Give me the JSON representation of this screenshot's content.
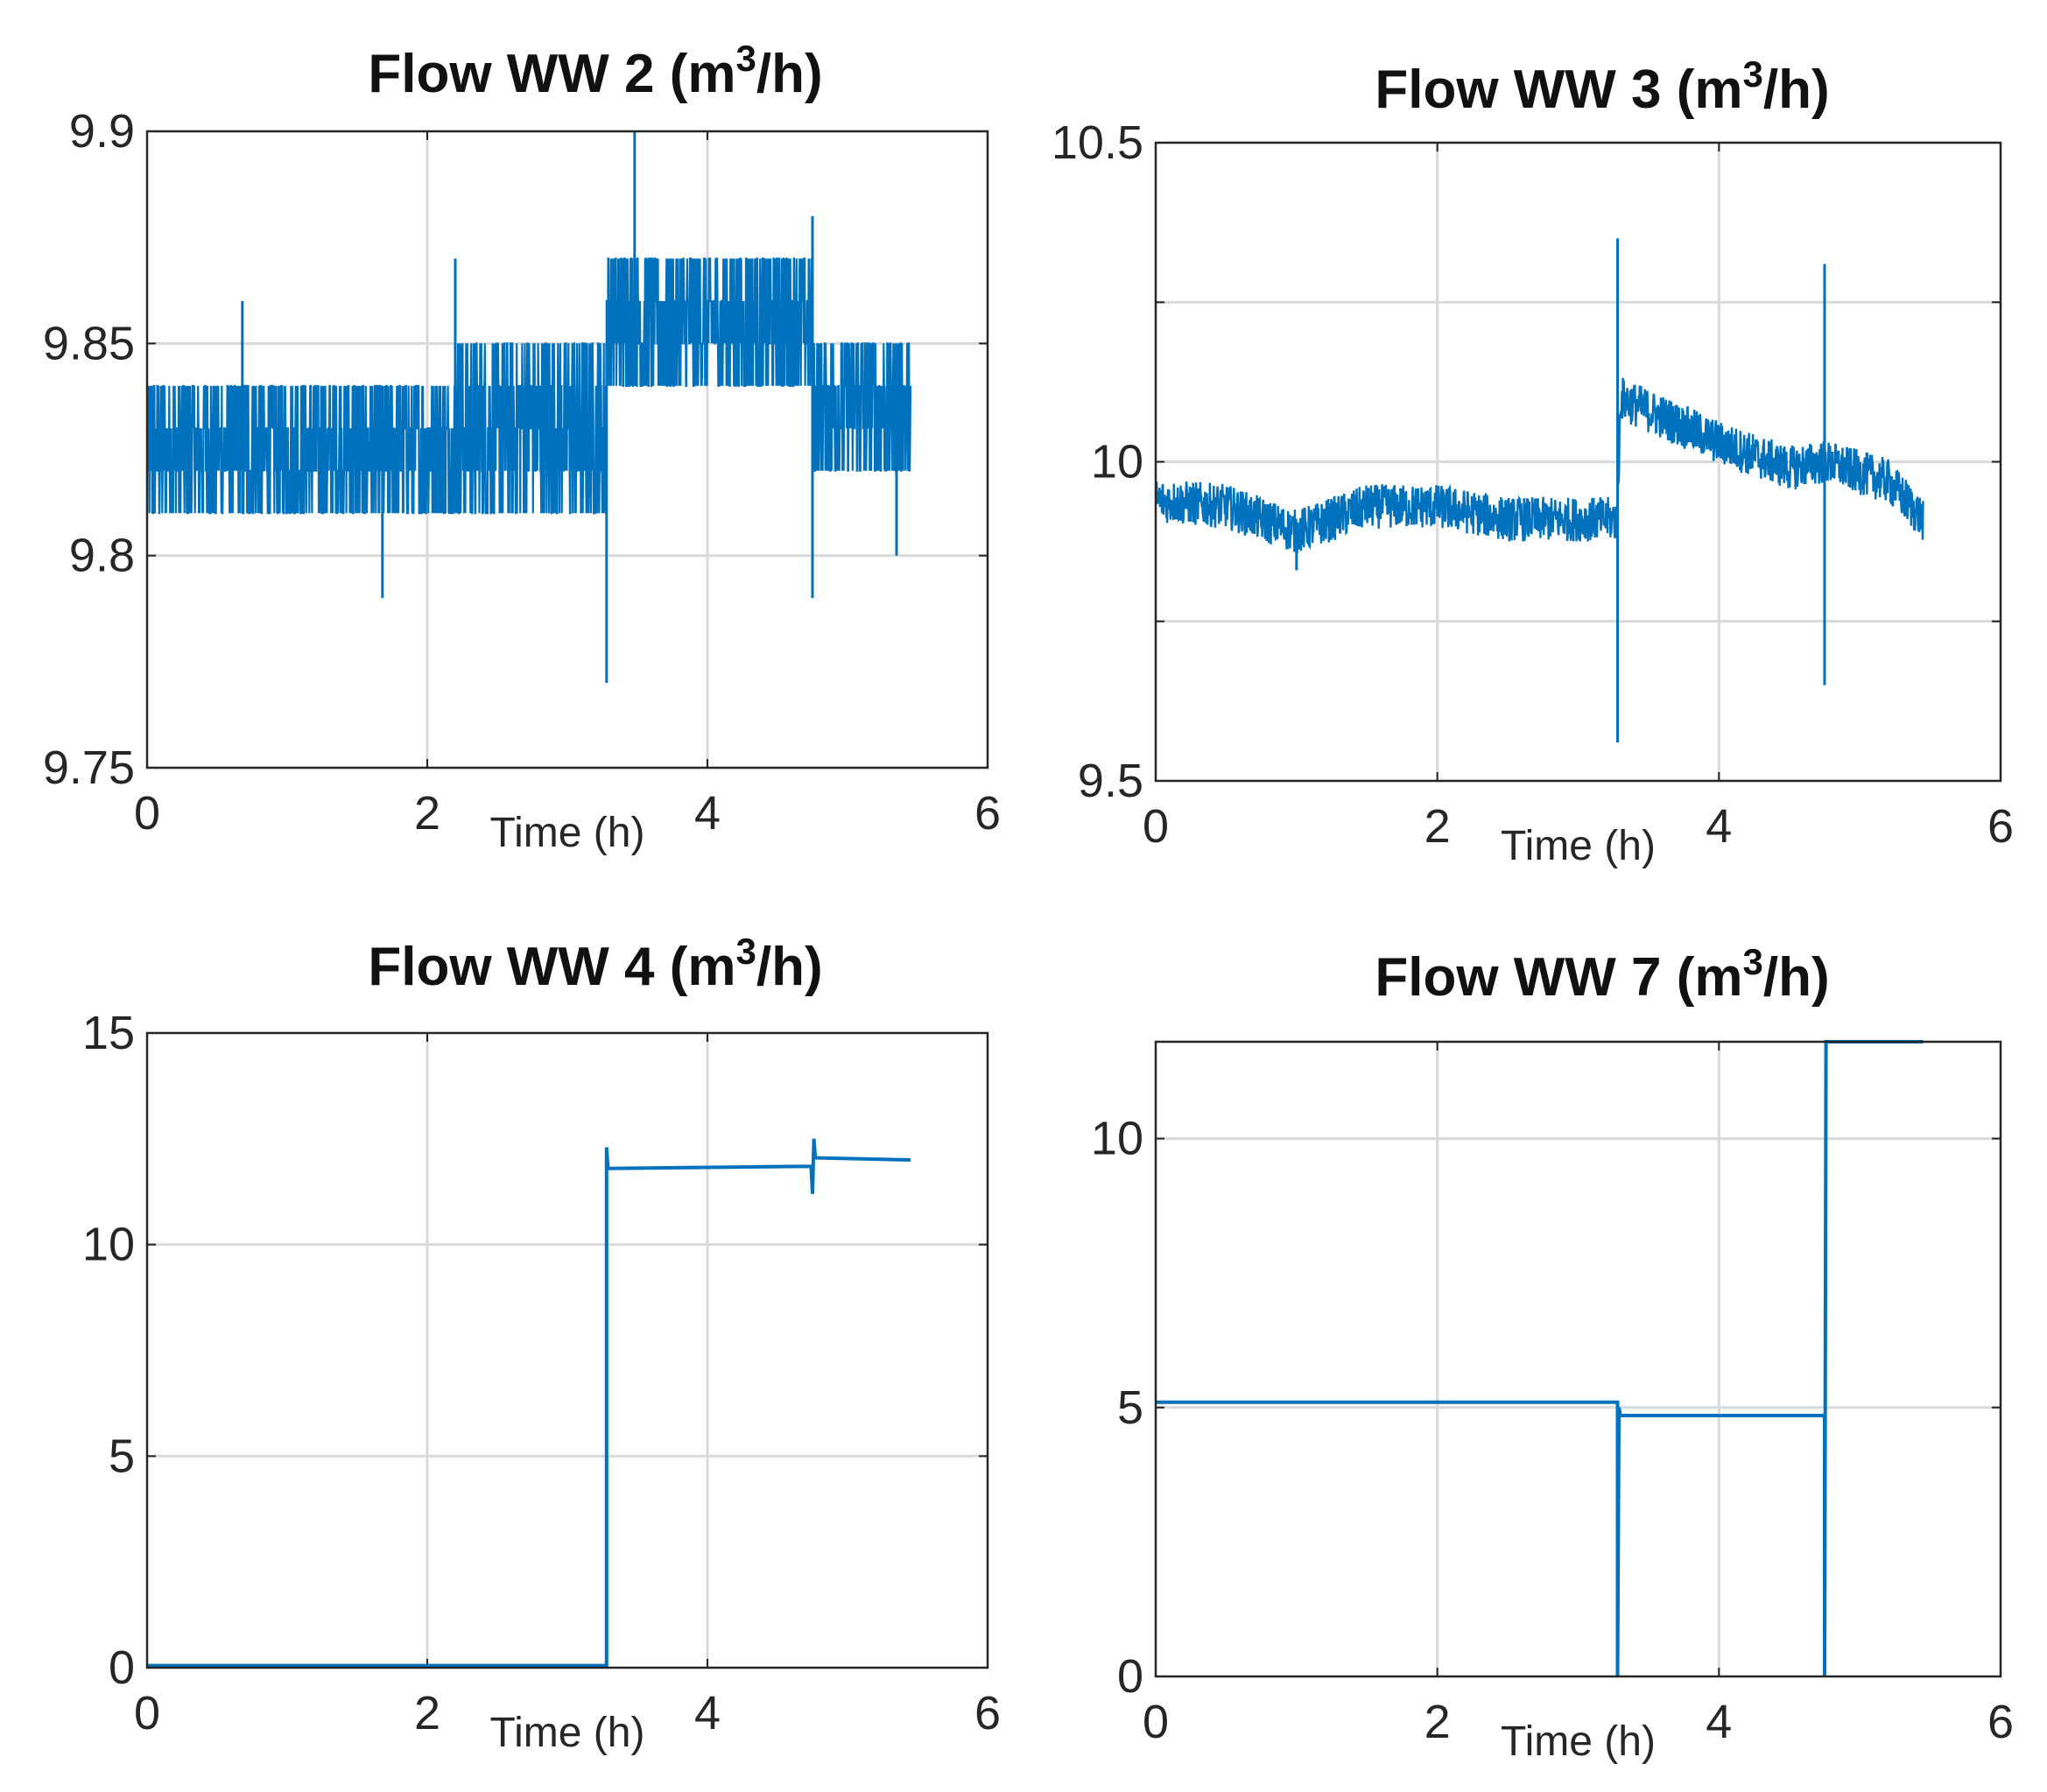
{
  "colors": {
    "line": "#0072bd",
    "grid": "#d9d9d9",
    "axis": "#262626",
    "text": "#111111"
  },
  "chart_data": [
    {
      "type": "line",
      "title": "Flow  WW 2 (m3/h)",
      "title_parts": {
        "pre": "Flow  WW 2 (m",
        "sup": "3",
        "post": "/h)"
      },
      "xlabel": "Time  (h)",
      "ylabel": "",
      "xlim": [
        0,
        6
      ],
      "ylim": [
        9.75,
        9.9
      ],
      "xticks": [
        "0",
        "2",
        "4",
        "6"
      ],
      "yticks": [
        "9.75",
        "9.8",
        "9.85",
        "9.9"
      ],
      "grid": true,
      "series": [
        {
          "name": "Flow WW 2",
          "noise": "quantized",
          "segments": [
            {
              "x0": 0,
              "x1": 2.2,
              "lo": 9.81,
              "hi": 9.84
            },
            {
              "x0": 2.2,
              "x1": 3.28,
              "lo": 9.81,
              "hi": 9.85
            },
            {
              "x0": 3.28,
              "x1": 4.75,
              "lo": 9.84,
              "hi": 9.87
            },
            {
              "x0": 4.75,
              "x1": 5.45,
              "lo": 9.82,
              "hi": 9.85
            }
          ],
          "spikes": [
            {
              "x": 3.28,
              "lo": 9.77,
              "hi": 9.85
            },
            {
              "x": 3.48,
              "lo": 9.84,
              "hi": 9.9
            },
            {
              "x": 4.75,
              "lo": 9.79,
              "hi": 9.88
            },
            {
              "x": 1.68,
              "lo": 9.79,
              "hi": 9.84
            },
            {
              "x": 5.35,
              "lo": 9.8,
              "hi": 9.85
            },
            {
              "x": 0.68,
              "lo": 9.81,
              "hi": 9.86
            },
            {
              "x": 2.2,
              "lo": 9.81,
              "hi": 9.87
            }
          ]
        }
      ]
    },
    {
      "type": "line",
      "title": "Flow  WW 3 (m3/h)",
      "title_parts": {
        "pre": "Flow  WW 3 (m",
        "sup": "3",
        "post": "/h)"
      },
      "xlabel": "Time  (h)",
      "ylabel": "",
      "xlim": [
        0,
        6
      ],
      "ylim": [
        9.5,
        10.5
      ],
      "xticks": [
        "0",
        "2",
        "4",
        "6"
      ],
      "yticks": [
        "9.5",
        "",
        "10",
        "",
        "10.5"
      ],
      "grid": true,
      "series": [
        {
          "name": "Flow WW 3",
          "noise": "continuous",
          "baseline": [
            [
              0,
              9.94
            ],
            [
              0.5,
              9.93
            ],
            [
              1.0,
              9.89
            ],
            [
              1.5,
              9.93
            ],
            [
              2.0,
              9.93
            ],
            [
              2.5,
              9.91
            ],
            [
              3.28,
              9.91
            ],
            [
              3.3,
              10.1
            ],
            [
              3.6,
              10.07
            ],
            [
              4.0,
              10.03
            ],
            [
              4.5,
              9.99
            ],
            [
              4.75,
              10.0
            ],
            [
              5.2,
              9.97
            ],
            [
              5.45,
              9.91
            ]
          ],
          "amplitude": 0.035,
          "spikes": [
            {
              "x": 3.28,
              "lo": 9.56,
              "hi": 10.35
            },
            {
              "x": 4.75,
              "lo": 9.65,
              "hi": 10.31
            },
            {
              "x": 1.0,
              "lo": 9.83,
              "hi": 9.9
            }
          ]
        }
      ]
    },
    {
      "type": "line",
      "title": "Flow  WW 4 (m3/h)",
      "title_parts": {
        "pre": "Flow  WW 4 (m",
        "sup": "3",
        "post": "/h)"
      },
      "xlabel": "Time  (h)",
      "ylabel": "",
      "xlim": [
        0,
        6
      ],
      "ylim": [
        0,
        15
      ],
      "xticks": [
        "0",
        "2",
        "4",
        "6"
      ],
      "yticks": [
        "0",
        "5",
        "10",
        "15"
      ],
      "grid": true,
      "series": [
        {
          "name": "Flow WW 4",
          "noise": "none",
          "points": [
            [
              0,
              0.05
            ],
            [
              3.28,
              0.05
            ],
            [
              3.28,
              12.3
            ],
            [
              3.29,
              11.8
            ],
            [
              4.74,
              11.85
            ],
            [
              4.75,
              11.2
            ],
            [
              4.76,
              12.5
            ],
            [
              4.77,
              12.05
            ],
            [
              5.45,
              12.0
            ]
          ]
        }
      ]
    },
    {
      "type": "line",
      "title": "Flow  WW 7 (m3/h)",
      "title_parts": {
        "pre": "Flow  WW 7 (m",
        "sup": "3",
        "post": "/h)"
      },
      "xlabel": "Time  (h)",
      "ylabel": "",
      "xlim": [
        0,
        6
      ],
      "ylim": [
        0,
        11.8
      ],
      "xticks": [
        "0",
        "2",
        "4",
        "6"
      ],
      "yticks": [
        "0",
        "5",
        "10"
      ],
      "ytick_values": [
        0,
        5,
        10
      ],
      "grid": true,
      "series": [
        {
          "name": "Flow WW 7",
          "noise": "none",
          "points": [
            [
              0,
              5.1
            ],
            [
              3.28,
              5.1
            ],
            [
              3.28,
              0.0
            ],
            [
              3.29,
              5.0
            ],
            [
              3.3,
              4.85
            ],
            [
              4.75,
              4.85
            ],
            [
              4.75,
              0.0
            ],
            [
              4.76,
              11.8
            ],
            [
              5.45,
              11.8
            ]
          ]
        }
      ]
    }
  ]
}
